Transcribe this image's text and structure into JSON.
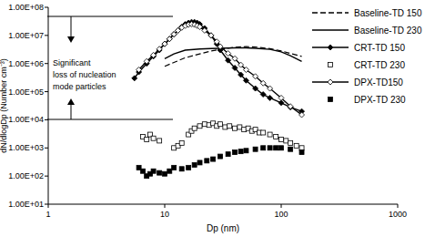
{
  "chart_data": {
    "type": "scatter",
    "x_label": "Dp (nm)",
    "y_label": "dN/dlogDp (Number cm⁻³)",
    "annotation_lines": [
      "Significant",
      "loss of nucleation",
      "mode particles"
    ],
    "log": true,
    "legend": "top-right",
    "grid": false,
    "xlim": [
      1,
      1000
    ],
    "xticks": [
      1,
      10,
      100,
      1000
    ],
    "ylim": [
      10,
      100000000
    ],
    "yticks": [
      {
        "value": 10,
        "label": "1.00E+01"
      },
      {
        "value": 100,
        "label": "1.00E+02"
      },
      {
        "value": 1000,
        "label": "1.00E+03"
      },
      {
        "value": 10000,
        "label": "1.00E+04"
      },
      {
        "value": 100000,
        "label": "1.00E+05"
      },
      {
        "value": 1000000,
        "label": "1.00E+06"
      },
      {
        "value": 10000000,
        "label": "1.00E+07"
      },
      {
        "value": 100000000,
        "label": "1.00E+08"
      }
    ],
    "series": [
      {
        "name": "Baseline-TD 150",
        "color": "#000000",
        "type": "line",
        "line_style": "dashed",
        "marker": "none",
        "x": [
          10,
          12,
          15,
          20,
          25,
          30,
          40,
          50,
          60,
          80,
          100,
          120,
          150
        ],
        "values": [
          800000,
          1100000,
          1600000,
          2200000,
          2800000,
          3200000,
          3800000,
          4000000,
          3900000,
          3400000,
          2800000,
          2300000,
          1800000
        ]
      },
      {
        "name": "Baseline-TD 230",
        "color": "#000000",
        "type": "line",
        "line_style": "solid",
        "marker": "none",
        "x": [
          10,
          12,
          15,
          20,
          25,
          30,
          40,
          50,
          60,
          80,
          100,
          120,
          150
        ],
        "values": [
          1500000,
          2200000,
          3000000,
          3300000,
          3400000,
          3500000,
          3600000,
          3600000,
          3500000,
          3200000,
          2600000,
          1900000,
          1200000
        ]
      },
      {
        "name": "CRT-TD 150",
        "color": "#000000",
        "type": "line",
        "line_style": "solid",
        "marker": "diamond",
        "x": [
          5.5,
          6,
          7,
          8,
          9,
          10,
          11,
          12,
          13,
          14,
          15,
          16,
          17,
          18,
          19,
          20,
          22,
          25,
          28,
          30,
          35,
          40,
          45,
          50,
          60,
          70,
          80,
          100,
          120,
          150
        ],
        "values": [
          300000,
          500000,
          1000000,
          1800000,
          3000000,
          5000000,
          7500000,
          11000000,
          15000000,
          20000000,
          25000000,
          28000000,
          30000000,
          30000000,
          28000000,
          25000000,
          18000000,
          10000000,
          5000000,
          3000000,
          1300000,
          700000,
          400000,
          250000,
          130000,
          80000,
          60000,
          40000,
          28000,
          20000
        ]
      },
      {
        "name": "CRT-TD 230",
        "color": "#000000",
        "type": "scatter",
        "line_style": "none",
        "marker": "square-open",
        "x": [
          6.5,
          7,
          7.5,
          8,
          9,
          12,
          13,
          14,
          16,
          17,
          18,
          20,
          22,
          24,
          26,
          28,
          30,
          33,
          36,
          40,
          44,
          48,
          52,
          56,
          60,
          65,
          70,
          80,
          90,
          100,
          110,
          120,
          135,
          150
        ],
        "values": [
          2500,
          2000,
          3000,
          2200,
          1800,
          1000,
          1200,
          1500,
          3000,
          4000,
          5000,
          6000,
          7000,
          6500,
          7500,
          6000,
          7000,
          5500,
          6000,
          5000,
          5500,
          4500,
          5000,
          4000,
          4500,
          3500,
          3500,
          3000,
          2500,
          2000,
          1800,
          1500,
          1200,
          1000
        ]
      },
      {
        "name": "DPX-TD150",
        "color": "#000000",
        "type": "line",
        "line_style": "solid",
        "marker": "diamond-open",
        "x": [
          6,
          7,
          8,
          9,
          10,
          11,
          12,
          13,
          14,
          15,
          16,
          17,
          18,
          19,
          20,
          22,
          25,
          28,
          30,
          35,
          40,
          45,
          50,
          60,
          70,
          80,
          100,
          120,
          150
        ],
        "values": [
          600000,
          1200000,
          2000000,
          3300000,
          5000000,
          7500000,
          11000000,
          15000000,
          19000000,
          22000000,
          24000000,
          25000000,
          24000000,
          22000000,
          20000000,
          15000000,
          10000000,
          6000000,
          4000000,
          2300000,
          1500000,
          900000,
          600000,
          350000,
          200000,
          130000,
          60000,
          30000,
          15000
        ]
      },
      {
        "name": "DPX-TD 230",
        "color": "#000000",
        "type": "scatter",
        "line_style": "none",
        "marker": "square",
        "x": [
          6,
          6.5,
          7,
          7.5,
          8,
          9,
          10,
          11,
          12,
          14,
          16,
          18,
          20,
          23,
          26,
          30,
          35,
          40,
          45,
          50,
          60,
          70,
          80,
          90,
          100,
          120,
          150
        ],
        "values": [
          200,
          150,
          100,
          120,
          150,
          130,
          120,
          150,
          200,
          180,
          200,
          250,
          300,
          350,
          400,
          500,
          600,
          700,
          750,
          800,
          900,
          1000,
          1000,
          1000,
          1000,
          900,
          700
        ]
      }
    ]
  }
}
